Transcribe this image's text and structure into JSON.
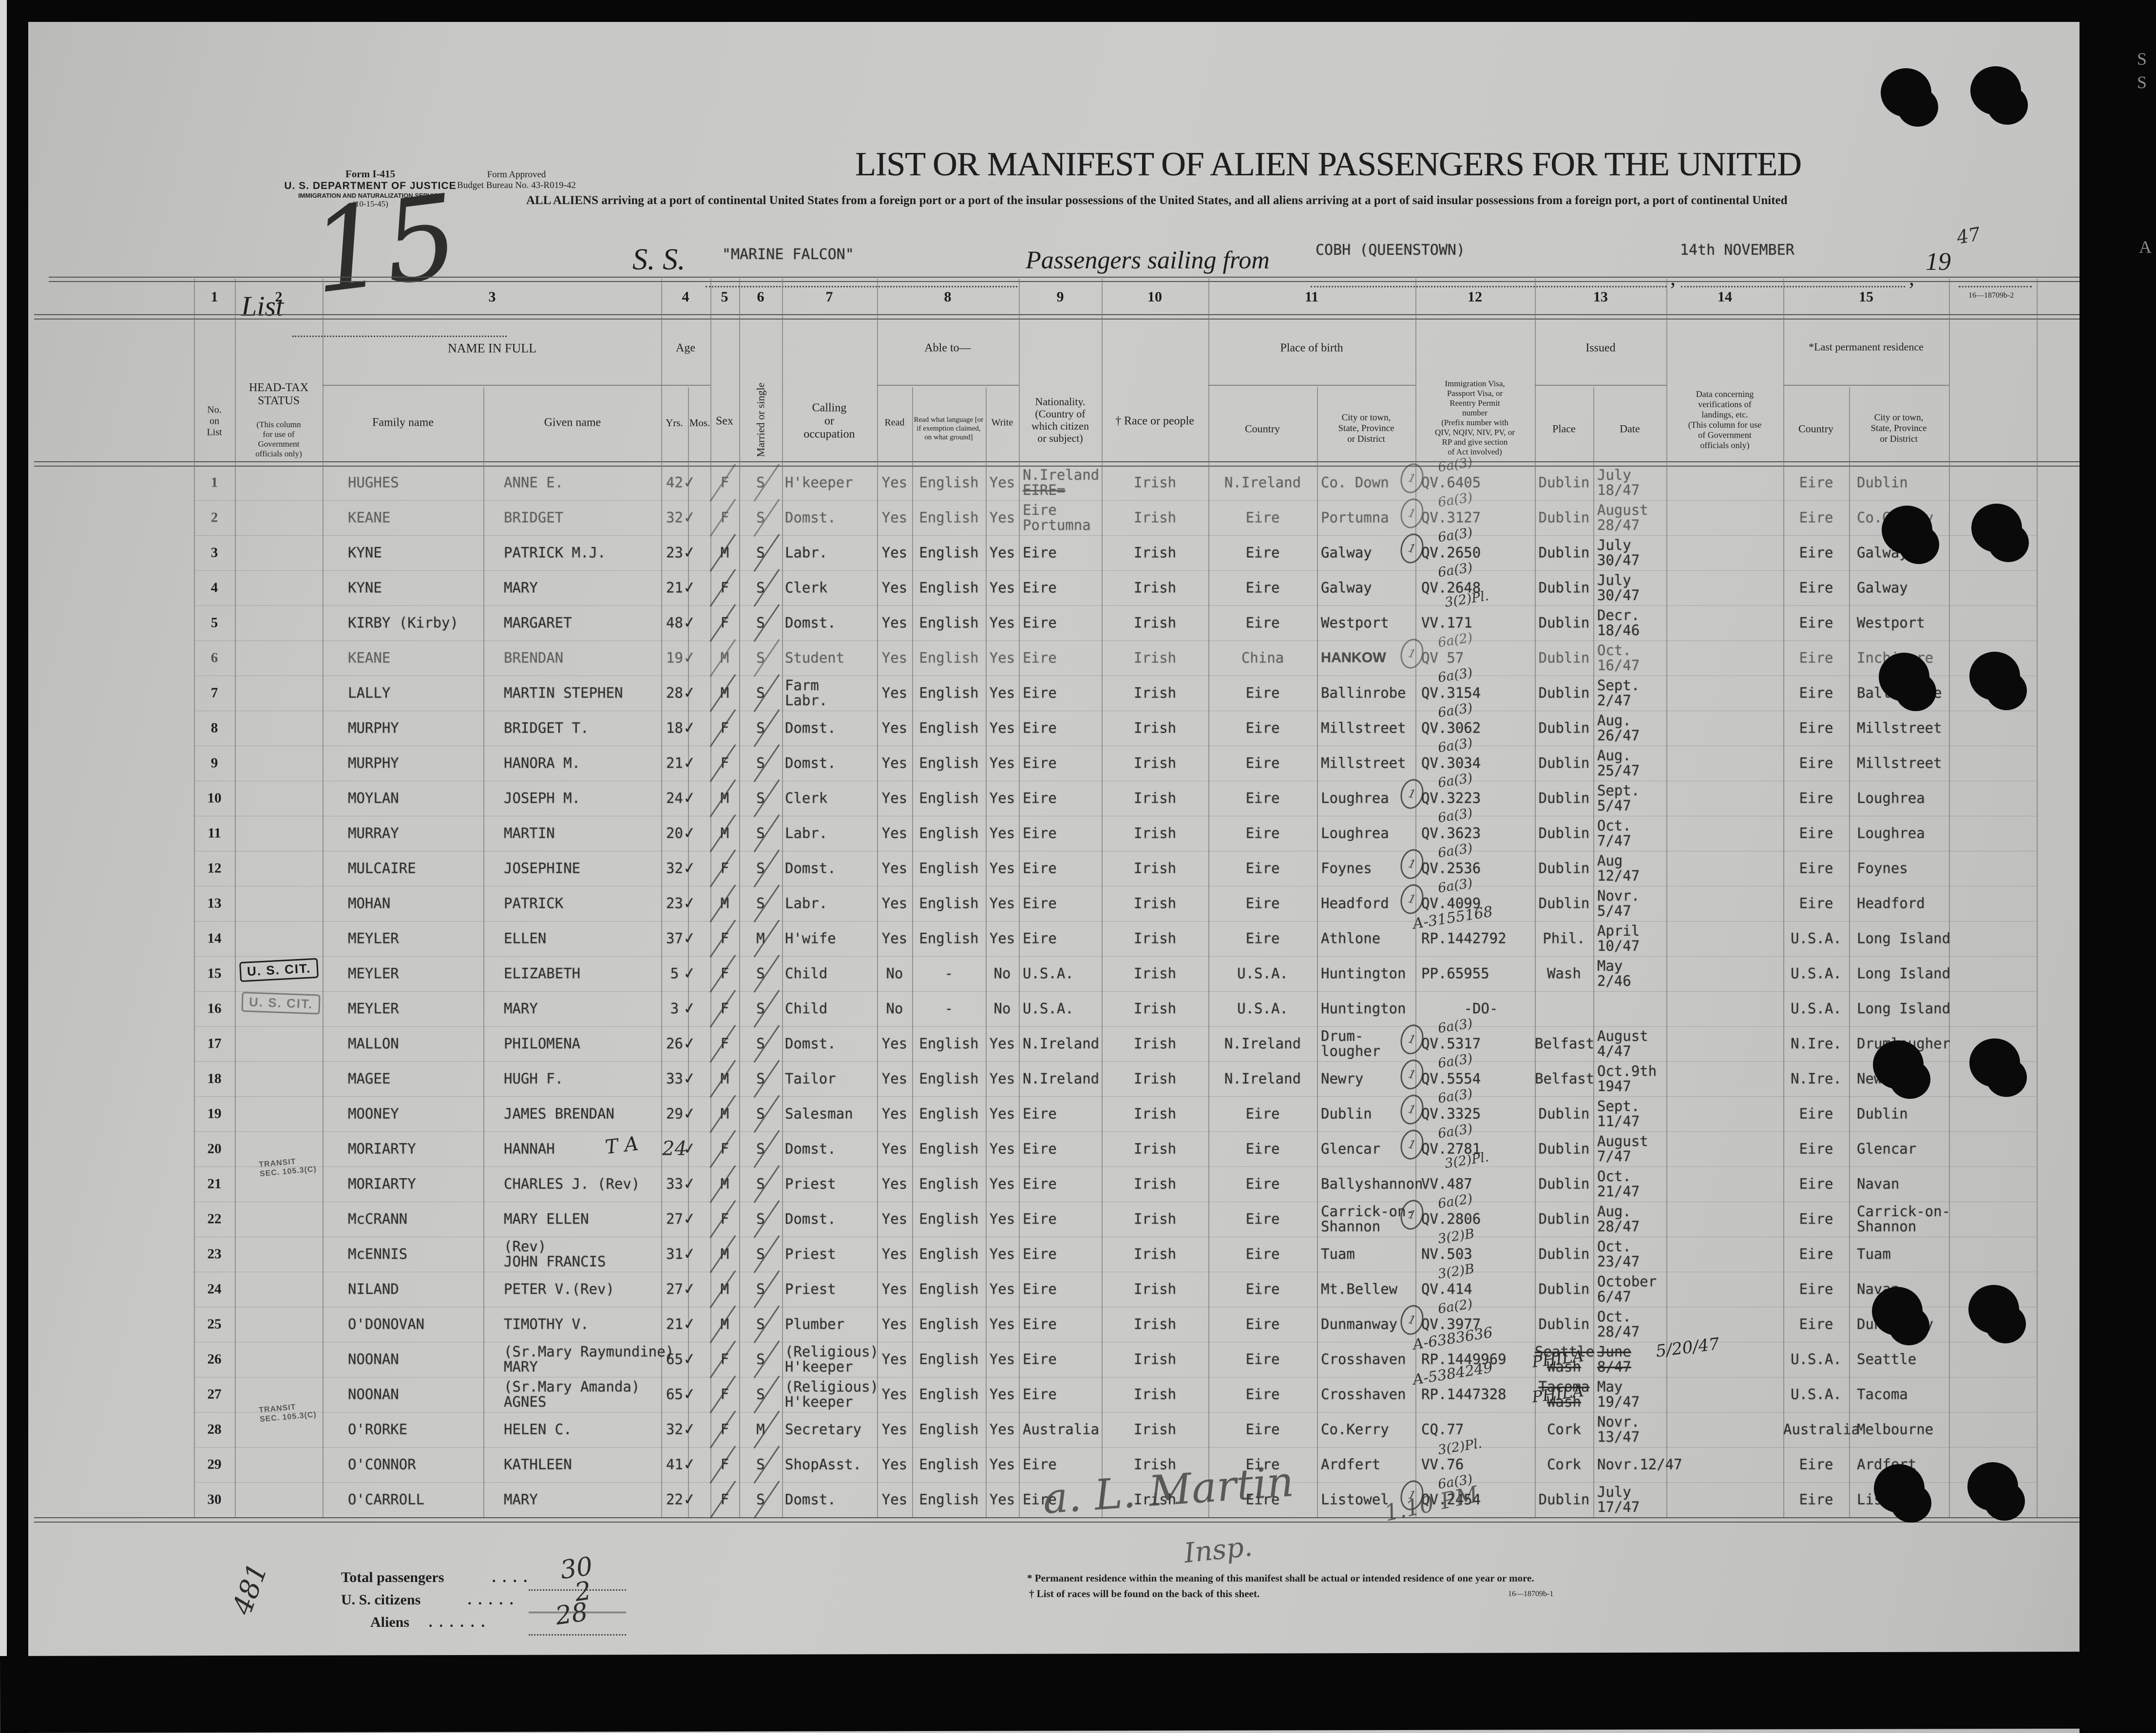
{
  "form": {
    "line1": "Form I-415",
    "line2": "U. S. DEPARTMENT OF JUSTICE",
    "line3": "IMMIGRATION AND NATURALIZATION SERVICE",
    "line4": "(10-15-45)",
    "approved1": "Form Approved",
    "approved2": "Budget Bureau No. 43-R019-42",
    "list_label": "List",
    "list_no_hand": "15"
  },
  "title": "LIST OR MANIFEST OF ALIEN PASSENGERS FOR THE UNITED",
  "subtitle": "ALL ALIENS arriving at a port of continental United States from a foreign port or a port of the insular possessions of the United States, and all aliens arriving at a port of said insular possessions from a foreign port, a port of continental United",
  "sailing": {
    "ss_label": "S. S.",
    "ship": "\"MARINE FALCON\"",
    "passengers_label": "Passengers sailing from",
    "port": "COBH (QUEENSTOWN)",
    "date": "14th NOVEMBER",
    "comma1": ",",
    "comma2": ",",
    "year_label": "19",
    "year_hand": "47",
    "form_no": "16—18709b-2"
  },
  "table": {
    "col_numbers": [
      "1",
      "2",
      "3",
      "4",
      "5",
      "6",
      "7",
      "8",
      "9",
      "10",
      "11",
      "12",
      "13",
      "14",
      "15"
    ],
    "headers": {
      "c1": "No.\non\nList",
      "c2a": "HEAD-TAX\nSTATUS",
      "c2b": "(This column\nfor use of\nGovernment\nofficials only)",
      "c3": "NAME IN FULL",
      "c3a": "Family name",
      "c3b": "Given name",
      "c4": "Age",
      "c4a": "Yrs.",
      "c4b": "Mos.",
      "c5": "Sex",
      "c6": "Married or single",
      "c7": "Calling\nor\noccupation",
      "c8": "Able to—",
      "c8a": "Read",
      "c8b": "Read what language [or\nif exemption claimed,\non what ground]",
      "c8c": "Write",
      "c9": "Nationality.\n(Country of\nwhich citizen\nor subject)",
      "c10": "† Race or people",
      "c11": "Place of birth",
      "c11a": "Country",
      "c11b": "City or town,\nState, Province\nor District",
      "c12": "Immigration Visa,\nPassport Visa, or\nReentry Permit\nnumber\n(Prefix number with\nQIV, NQIV, NIV, PV, or\nRP and give section\nof Act involved)",
      "c13": "Issued",
      "c13a": "Place",
      "c13b": "Date",
      "c14": "Data concerning\nverifications of\nlandings, etc.\n(This column for use\nof Government\nofficials only)",
      "c15": "*Last permanent residence",
      "c15a": "Country",
      "c15b": "City or town,\nState, Province\nor District"
    },
    "rows": [
      {
        "n": "1",
        "f": "HUGHES",
        "g": "ANNE E.",
        "y": "42",
        "s": "F",
        "m": "S",
        "c": "H'keeper",
        "rd": "Yes",
        "lg": "English",
        "wr": "Yes",
        "na": "N.Ireland",
        "na2": "EIRE=",
        "na2s": true,
        "ra": "Irish",
        "bc": "N.Ireland",
        "bk": "Co. Down",
        "c1": true,
        "an": "6a(3)",
        "vi": "QV.6405",
        "ip": "Dublin",
        "dt": "July\n18/47",
        "rc": "Eire",
        "rk": "Dublin",
        "fd": true
      },
      {
        "n": "2",
        "f": "KEANE",
        "g": "BRIDGET",
        "y": "32",
        "s": "F",
        "m": "S",
        "c": "Domst.",
        "rd": "Yes",
        "lg": "English",
        "wr": "Yes",
        "na": "Eire",
        "na2": "Portumna",
        "ra": "Irish",
        "bc": "Eire",
        "bk": "Portumna",
        "c1": true,
        "an": "6a(3)",
        "vi": "QV.3127",
        "ip": "Dublin",
        "dt": "August\n28/47",
        "rc": "Eire",
        "rk": "Co.Galway",
        "fd": true
      },
      {
        "n": "3",
        "f": "KYNE",
        "g": "PATRICK M.J.",
        "y": "23",
        "s": "M",
        "m": "S",
        "c": "Labr.",
        "rd": "Yes",
        "lg": "English",
        "wr": "Yes",
        "na": "Eire",
        "ra": "Irish",
        "bc": "Eire",
        "bk": "Galway",
        "c1": true,
        "an": "6a(3)",
        "vi": "QV.2650",
        "ip": "Dublin",
        "dt": "July\n30/47",
        "rc": "Eire",
        "rk": "Galway"
      },
      {
        "n": "4",
        "f": "KYNE",
        "g": "MARY",
        "y": "21",
        "s": "F",
        "m": "S",
        "c": "Clerk",
        "rd": "Yes",
        "lg": "English",
        "wr": "Yes",
        "na": "Eire",
        "ra": "Irish",
        "bc": "Eire",
        "bk": "Galway",
        "an": "6a(3)",
        "an2": "3(2)Pl.",
        "vi": "QV.2648",
        "ip": "Dublin",
        "dt": "July\n30/47",
        "rc": "Eire",
        "rk": "Galway"
      },
      {
        "n": "5",
        "f": "KIRBY (Kirby)",
        "g": "MARGARET",
        "y": "48",
        "s": "F",
        "m": "S",
        "c": "Domst.",
        "rd": "Yes",
        "lg": "English",
        "wr": "Yes",
        "na": "Eire",
        "ra": "Irish",
        "bc": "Eire",
        "bk": "Westport",
        "vi": "VV.171",
        "ip": "Dublin",
        "dt": "Decr.\n18/46",
        "rc": "Eire",
        "rk": "Westport"
      },
      {
        "n": "6",
        "f": "KEANE",
        "g": "BRENDAN",
        "y": "19",
        "s": "M",
        "m": "S",
        "c": "Student",
        "rd": "Yes",
        "lg": "English",
        "wr": "Yes",
        "na": "Eire",
        "ra": "Irish",
        "bc": "China",
        "bk": "HANKOW",
        "bks": true,
        "c1": true,
        "an": "6a(2)",
        "vi": "QV 57",
        "ip": "Dublin",
        "dt": "Oct.\n16/47",
        "rc": "Eire",
        "rk": "Inchicore",
        "fd": true
      },
      {
        "n": "7",
        "f": "LALLY",
        "g": "MARTIN STEPHEN",
        "y": "28",
        "s": "M",
        "m": "S",
        "c": "Farm\nLabr.",
        "rd": "Yes",
        "lg": "English",
        "wr": "Yes",
        "na": "Eire",
        "ra": "Irish",
        "bc": "Eire",
        "bk": "Ballinrobe",
        "an": "6a(3)",
        "vi": "QV.3154",
        "ip": "Dublin",
        "dt": "Sept.\n2/47",
        "rc": "Eire",
        "rk": "Ballinrobe"
      },
      {
        "n": "8",
        "f": "MURPHY",
        "g": "BRIDGET T.",
        "y": "18",
        "s": "F",
        "m": "S",
        "c": "Domst.",
        "rd": "Yes",
        "lg": "English",
        "wr": "Yes",
        "na": "Eire",
        "ra": "Irish",
        "bc": "Eire",
        "bk": "Millstreet",
        "an": "6a(3)",
        "vi": "QV.3062",
        "ip": "Dublin",
        "dt": "Aug.\n26/47",
        "rc": "Eire",
        "rk": "Millstreet"
      },
      {
        "n": "9",
        "f": "MURPHY",
        "g": "HANORA M.",
        "y": "21",
        "s": "F",
        "m": "S",
        "c": "Domst.",
        "rd": "Yes",
        "lg": "English",
        "wr": "Yes",
        "na": "Eire",
        "ra": "Irish",
        "bc": "Eire",
        "bk": "Millstreet",
        "an": "6a(3)",
        "vi": "QV.3034",
        "ip": "Dublin",
        "dt": "Aug.\n25/47",
        "rc": "Eire",
        "rk": "Millstreet"
      },
      {
        "n": "10",
        "f": "MOYLAN",
        "g": "JOSEPH M.",
        "y": "24",
        "s": "M",
        "m": "S",
        "c": "Clerk",
        "rd": "Yes",
        "lg": "English",
        "wr": "Yes",
        "na": "Eire",
        "ra": "Irish",
        "bc": "Eire",
        "bk": "Loughrea",
        "c1": true,
        "an": "6a(3)",
        "vi": "QV.3223",
        "ip": "Dublin",
        "dt": "Sept.\n5/47",
        "rc": "Eire",
        "rk": "Loughrea"
      },
      {
        "n": "11",
        "f": "MURRAY",
        "g": "MARTIN",
        "y": "20",
        "s": "M",
        "m": "S",
        "c": "Labr.",
        "rd": "Yes",
        "lg": "English",
        "wr": "Yes",
        "na": "Eire",
        "ra": "Irish",
        "bc": "Eire",
        "bk": "Loughrea",
        "an": "6a(3)",
        "vi": "QV.3623",
        "ip": "Dublin",
        "dt": "Oct.\n7/47",
        "rc": "Eire",
        "rk": "Loughrea"
      },
      {
        "n": "12",
        "f": "MULCAIRE",
        "g": "JOSEPHINE",
        "y": "32",
        "s": "F",
        "m": "S",
        "c": "Domst.",
        "rd": "Yes",
        "lg": "English",
        "wr": "Yes",
        "na": "Eire",
        "ra": "Irish",
        "bc": "Eire",
        "bk": "Foynes",
        "c1": true,
        "an": "6a(3)",
        "vi": "QV.2536",
        "ip": "Dublin",
        "dt": "Aug\n12/47",
        "rc": "Eire",
        "rk": "Foynes"
      },
      {
        "n": "13",
        "f": "MOHAN",
        "g": "PATRICK",
        "y": "23",
        "s": "M",
        "m": "S",
        "c": "Labr.",
        "rd": "Yes",
        "lg": "English",
        "wr": "Yes",
        "na": "Eire",
        "ra": "Irish",
        "bc": "Eire",
        "bk": "Headford",
        "c1": true,
        "an": "6a(3)",
        "vi": "QV.4099",
        "ip": "Dublin",
        "dt": "Novr.\n5/47",
        "rc": "Eire",
        "rk": "Headford"
      },
      {
        "n": "14",
        "f": "MEYLER",
        "g": "ELLEN",
        "y": "37",
        "s": "F",
        "m": "M",
        "c": "H'wife",
        "rd": "Yes",
        "lg": "English",
        "wr": "Yes",
        "na": "Eire",
        "ra": "Irish",
        "bc": "Eire",
        "bk": "Athlone",
        "an": "A-3155168",
        "vi": "RP.1442792",
        "ip": "Phil.",
        "dt": "April\n10/47",
        "rc": "U.S.A.",
        "rk": "Long Island"
      },
      {
        "n": "15",
        "f": "MEYLER",
        "g": "ELIZABETH",
        "y": "5",
        "s": "F",
        "m": "S",
        "c": "Child",
        "rd": "No",
        "lg": "-",
        "wr": "No",
        "na": "U.S.A.",
        "ra": "Irish",
        "bc": "U.S.A.",
        "bk": "Huntington",
        "vi": "PP.65955",
        "ip": "Wash",
        "dt": "May\n2/46",
        "rc": "U.S.A.",
        "rk": "Long Island",
        "ht": "uscit"
      },
      {
        "n": "16",
        "f": "MEYLER",
        "g": "MARY",
        "y": "3",
        "s": "F",
        "m": "S",
        "c": "Child",
        "rd": "No",
        "lg": "-",
        "wr": "No",
        "na": "U.S.A.",
        "ra": "Irish",
        "bc": "U.S.A.",
        "bk": "Huntington",
        "vi": "-DO-",
        "vc": true,
        "ip": "",
        "dt": "",
        "rc": "U.S.A.",
        "rk": "Long Island",
        "ht": "uscit2"
      },
      {
        "n": "17",
        "f": "MALLON",
        "g": "PHILOMENA",
        "y": "26",
        "s": "F",
        "m": "S",
        "c": "Domst.",
        "rd": "Yes",
        "lg": "English",
        "wr": "Yes",
        "na": "N.Ireland",
        "ra": "Irish",
        "bc": "N.Ireland",
        "bk": "Drum-\nlougher",
        "c1": true,
        "an": "6a(3)",
        "vi": "QV.5317",
        "ip": "Belfast",
        "dt": "August\n4/47",
        "rc": "N.Ire.",
        "rk": "Drumlougher"
      },
      {
        "n": "18",
        "f": "MAGEE",
        "g": "HUGH F.",
        "y": "33",
        "s": "M",
        "m": "S",
        "c": "Tailor",
        "rd": "Yes",
        "lg": "English",
        "wr": "Yes",
        "na": "N.Ireland",
        "ra": "Irish",
        "bc": "N.Ireland",
        "bk": "Newry",
        "c1": true,
        "an": "6a(3)",
        "vi": "QV.5554",
        "ip": "Belfast",
        "dt": "Oct.9th\n1947",
        "rc": "N.Ire.",
        "rk": "Newry"
      },
      {
        "n": "19",
        "f": "MOONEY",
        "g": "JAMES BRENDAN",
        "y": "29",
        "s": "M",
        "m": "S",
        "c": "Salesman",
        "rd": "Yes",
        "lg": "English",
        "wr": "Yes",
        "na": "Eire",
        "ra": "Irish",
        "bc": "Eire",
        "bk": "Dublin",
        "c1": true,
        "an": "6a(3)",
        "vi": "QV.3325",
        "ip": "Dublin",
        "dt": "Sept.\n11/47",
        "rc": "Eire",
        "rk": "Dublin"
      },
      {
        "n": "20",
        "f": "MORIARTY",
        "g": "HANNAH",
        "gh": "T A",
        "y": "24",
        "yh": true,
        "s": "F",
        "m": "S",
        "c": "Domst.",
        "rd": "Yes",
        "lg": "English",
        "wr": "Yes",
        "na": "Eire",
        "ra": "Irish",
        "bc": "Eire",
        "bk": "Glencar",
        "c1": true,
        "an": "6a(3)",
        "an2": "3(2)Pl.",
        "vi": "QV.2781",
        "ip": "Dublin",
        "dt": "August\n7/47",
        "rc": "Eire",
        "rk": "Glencar"
      },
      {
        "n": "21",
        "f": "MORIARTY",
        "g": "CHARLES J. (Rev)",
        "y": "33",
        "s": "M",
        "m": "S",
        "c": "Priest",
        "rd": "Yes",
        "lg": "English",
        "wr": "Yes",
        "na": "Eire",
        "ra": "Irish",
        "bc": "Eire",
        "bk": "Ballyshannon",
        "vi": "VV.487",
        "ip": "Dublin",
        "dt": "Oct.\n21/47",
        "rc": "Eire",
        "rk": "Navan",
        "ht": "transit"
      },
      {
        "n": "22",
        "f": "McCRANN",
        "g": "MARY ELLEN",
        "y": "27",
        "s": "F",
        "m": "S",
        "c": "Domst.",
        "rd": "Yes",
        "lg": "English",
        "wr": "Yes",
        "na": "Eire",
        "ra": "Irish",
        "bc": "Eire",
        "bk": "Carrick-on-\nShannon",
        "c1": true,
        "an": "6a(2)",
        "vi": "QV.2806",
        "ip": "Dublin",
        "dt": "Aug.\n28/47",
        "rc": "Eire",
        "rk": "Carrick-on-\nShannon"
      },
      {
        "n": "23",
        "f": "McENNIS",
        "g": "(Rev)\nJOHN FRANCIS",
        "y": "31",
        "s": "M",
        "m": "S",
        "c": "Priest",
        "rd": "Yes",
        "lg": "English",
        "wr": "Yes",
        "na": "Eire",
        "ra": "Irish",
        "bc": "Eire",
        "bk": "Tuam",
        "an": "3(2)B",
        "vi": "NV.503",
        "ip": "Dublin",
        "dt": "Oct.\n23/47",
        "rc": "Eire",
        "rk": "Tuam"
      },
      {
        "n": "24",
        "f": "NILAND",
        "g": "PETER V.(Rev)",
        "y": "27",
        "s": "M",
        "m": "S",
        "c": "Priest",
        "rd": "Yes",
        "lg": "English",
        "wr": "Yes",
        "na": "Eire",
        "ra": "Irish",
        "bc": "Eire",
        "bk": "Mt.Bellew",
        "an": "3(2)B",
        "vi": "QV.414",
        "ip": "Dublin",
        "dt": "October\n6/47",
        "rc": "Eire",
        "rk": "Navan"
      },
      {
        "n": "25",
        "f": "O'DONOVAN",
        "g": "TIMOTHY V.",
        "y": "21",
        "s": "M",
        "m": "S",
        "c": "Plumber",
        "rd": "Yes",
        "lg": "English",
        "wr": "Yes",
        "na": "Eire",
        "ra": "Irish",
        "bc": "Eire",
        "bk": "Dunmanway",
        "c1": true,
        "an": "6a(2)",
        "vi": "QV.3977",
        "ip": "Dublin",
        "dt": "Oct.\n28/47",
        "rc": "Eire",
        "rk": "Dunmanway"
      },
      {
        "n": "26",
        "f": "NOONAN",
        "g": "(Sr.Mary Raymundine)\nMARY",
        "y": "65",
        "s": "F",
        "m": "S",
        "c": "(Religious)\nH'keeper",
        "rd": "Yes",
        "lg": "English",
        "wr": "Yes",
        "na": "Eire",
        "ra": "Irish",
        "bc": "Eire",
        "bk": "Crosshaven",
        "an": "A-6383636",
        "vi": "RP.1449969",
        "ip": "Seattle\nWash",
        "ips": true,
        "iph": "PHILA",
        "dt": "June\n8/47",
        "dts": true,
        "dth": "5/20/47",
        "rc": "U.S.A.",
        "rk": "Seattle"
      },
      {
        "n": "27",
        "f": "NOONAN",
        "g": "(Sr.Mary Amanda)\nAGNES",
        "y": "65",
        "s": "F",
        "m": "S",
        "c": "(Religious)\nH'keeper",
        "rd": "Yes",
        "lg": "English",
        "wr": "Yes",
        "na": "Eire",
        "ra": "Irish",
        "bc": "Eire",
        "bk": "Crosshaven",
        "an": "A-5384249",
        "vi": "RP.1447328",
        "ip": "Tacoma\nWash",
        "ips": true,
        "iph": "PHILA",
        "dt": "May\n19/47",
        "rc": "U.S.A.",
        "rk": "Tacoma"
      },
      {
        "n": "28",
        "f": "O'RORKE",
        "g": "HELEN C.",
        "y": "32",
        "s": "F",
        "m": "M",
        "c": "Secretary",
        "rd": "Yes",
        "lg": "English",
        "wr": "Yes",
        "na": "Australia",
        "ra": "Irish",
        "bc": "Eire",
        "bk": "Co.Kerry",
        "vi": "CQ.77",
        "ip": "Cork",
        "dt": "Novr.\n13/47",
        "rc": "Australia",
        "rk": "Melbourne",
        "ht": "transit"
      },
      {
        "n": "29",
        "f": "O'CONNOR",
        "g": "KATHLEEN",
        "y": "41",
        "s": "F",
        "m": "S",
        "c": "ShopAsst.",
        "rd": "Yes",
        "lg": "English",
        "wr": "Yes",
        "na": "Eire",
        "ra": "Irish",
        "bc": "Eire",
        "bk": "Ardfert",
        "an": "3(2)Pl.",
        "vi": "VV.76",
        "ip": "Cork",
        "dt": "Novr.12/47",
        "rc": "Eire",
        "rk": "Ardfert"
      },
      {
        "n": "30",
        "f": "O'CARROLL",
        "g": "MARY",
        "y": "22",
        "s": "F",
        "m": "S",
        "c": "Domst.",
        "rd": "Yes",
        "lg": "English",
        "wr": "Yes",
        "na": "Eire",
        "ra": "Irish",
        "bc": "Eire",
        "bk": "Listowel",
        "c1": true,
        "an": "6a(3)",
        "vi": "QV.2454",
        "ip": "Dublin",
        "dt": "July\n17/47",
        "rc": "Eire",
        "rk": "Listowel"
      }
    ],
    "stamps": {
      "uscit": "U. S. CIT.",
      "transit": "TRANSIT\nSEC. 105.3(C)"
    }
  },
  "summary": {
    "total_label": "Total passengers",
    "total_value": "30",
    "citizens_label": "U. S. citizens",
    "citizens_value": "2",
    "aliens_label": "Aliens",
    "aliens_value": "28",
    "side_number": "481"
  },
  "footnotes": {
    "note1": "* Permanent residence within the meaning of this manifest shall be actual or intended residence of one year or more.",
    "note2": "† List of races will be found on the back of this sheet.",
    "form_no": "16—18709b-1"
  },
  "signature": {
    "name": "a. L. Martin",
    "title": "Insp.",
    "time": "1.10 PM"
  },
  "edge_letters": [
    "S",
    "S",
    "A"
  ]
}
